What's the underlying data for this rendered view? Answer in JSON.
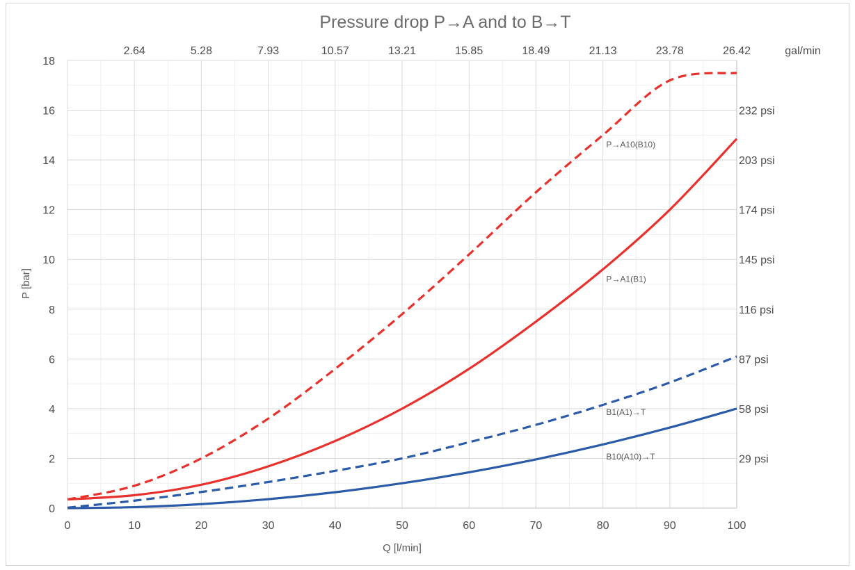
{
  "chart_data": {
    "type": "line",
    "title": "Pressure drop P→A and to B→T",
    "xlabel": "Q [l/min]",
    "ylabel": "P [bar]",
    "xlim": [
      0,
      100
    ],
    "ylim": [
      0,
      18
    ],
    "grid": true,
    "x_ticks": [
      "0",
      "10",
      "20",
      "30",
      "40",
      "50",
      "60",
      "70",
      "80",
      "90",
      "100"
    ],
    "y_ticks": [
      "0",
      "2",
      "4",
      "6",
      "8",
      "10",
      "12",
      "14",
      "16",
      "18"
    ],
    "top_axis": {
      "unit": "gal/min",
      "ticks": [
        {
          "x": 10,
          "label": "2.64"
        },
        {
          "x": 20,
          "label": "5.28"
        },
        {
          "x": 30,
          "label": "7.93"
        },
        {
          "x": 40,
          "label": "10.57"
        },
        {
          "x": 50,
          "label": "13.21"
        },
        {
          "x": 60,
          "label": "15.85"
        },
        {
          "x": 70,
          "label": "18.49"
        },
        {
          "x": 80,
          "label": "21.13"
        },
        {
          "x": 90,
          "label": "23.78"
        },
        {
          "x": 100,
          "label": "26.42"
        }
      ]
    },
    "right_axis": {
      "ticks": [
        {
          "y": 2,
          "label": "29 psi"
        },
        {
          "y": 4,
          "label": "58 psi"
        },
        {
          "y": 6,
          "label": "87 psi"
        },
        {
          "y": 8,
          "label": "116 psi"
        },
        {
          "y": 10,
          "label": "145 psi"
        },
        {
          "y": 12,
          "label": "174 psi"
        },
        {
          "y": 14,
          "label": "203 psi"
        },
        {
          "y": 16,
          "label": "232 psi"
        }
      ]
    },
    "series": [
      {
        "name": "P→A10(B10)",
        "color": "#e8302c",
        "dashed": true,
        "label_at": {
          "x": 80.5,
          "y": 14.5
        },
        "x": [
          0,
          10,
          20,
          30,
          40,
          50,
          60,
          70,
          80,
          90,
          100
        ],
        "y": [
          0.35,
          0.9,
          2.0,
          3.6,
          5.6,
          7.8,
          10.2,
          12.7,
          15.0,
          17.2,
          17.5
        ]
      },
      {
        "name": "P→A1(B1)",
        "color": "#e8302c",
        "dashed": false,
        "label_at": {
          "x": 80.5,
          "y": 9.1
        },
        "x": [
          0,
          10,
          20,
          30,
          40,
          50,
          60,
          70,
          80,
          90,
          100
        ],
        "y": [
          0.35,
          0.52,
          0.94,
          1.68,
          2.7,
          4.0,
          5.6,
          7.5,
          9.6,
          12.0,
          14.85
        ]
      },
      {
        "name": "B1(A1)→T",
        "color": "#2a5aa8",
        "dashed": true,
        "label_at": {
          "x": 80.5,
          "y": 3.75
        },
        "x": [
          0,
          10,
          20,
          30,
          40,
          50,
          60,
          70,
          80,
          90,
          100
        ],
        "y": [
          0.02,
          0.3,
          0.65,
          1.05,
          1.5,
          2.0,
          2.65,
          3.35,
          4.15,
          5.05,
          6.1
        ]
      },
      {
        "name": "B10(A10)→T",
        "color": "#2a5aa8",
        "dashed": false,
        "label_at": {
          "x": 80.5,
          "y": 1.95
        },
        "x": [
          0,
          10,
          20,
          30,
          40,
          50,
          60,
          70,
          80,
          90,
          100
        ],
        "y": [
          0.0,
          0.04,
          0.16,
          0.36,
          0.64,
          1.0,
          1.44,
          1.96,
          2.56,
          3.24,
          4.0
        ]
      }
    ]
  }
}
